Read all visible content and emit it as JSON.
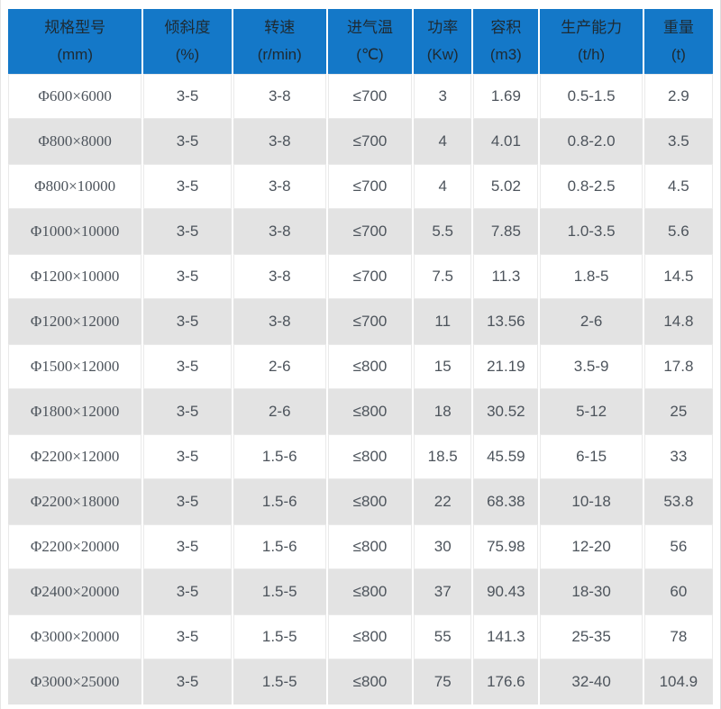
{
  "colors": {
    "header_bg": "#1478c8",
    "header_text": "#1e2a32",
    "body_text": "#4d545c",
    "stripe_row_bg": "#e3e3e3",
    "white_row_bg": "#ffffff",
    "cell_border": "#eaeaea"
  },
  "chart_data": {
    "type": "table",
    "title": "",
    "legend_position": "none",
    "grid": "striped-rows",
    "columns": [
      {
        "label": "规格型号",
        "unit": "(mm)"
      },
      {
        "label": "倾斜度",
        "unit": "(%)"
      },
      {
        "label": "转速",
        "unit": "(r/min)"
      },
      {
        "label": "进气温",
        "unit": "(℃)"
      },
      {
        "label": "功率",
        "unit": "(Kw)"
      },
      {
        "label": "容积",
        "unit": "(m3)"
      },
      {
        "label": "生产能力",
        "unit": "(t/h)"
      },
      {
        "label": "重量",
        "unit": "(t)"
      }
    ],
    "rows": [
      [
        "Φ600×6000",
        "3-5",
        "3-8",
        "≤700",
        "3",
        "1.69",
        "0.5-1.5",
        "2.9"
      ],
      [
        "Φ800×8000",
        "3-5",
        "3-8",
        "≤700",
        "4",
        "4.01",
        "0.8-2.0",
        "3.5"
      ],
      [
        "Φ800×10000",
        "3-5",
        "3-8",
        "≤700",
        "4",
        "5.02",
        "0.8-2.5",
        "4.5"
      ],
      [
        "Φ1000×10000",
        "3-5",
        "3-8",
        "≤700",
        "5.5",
        "7.85",
        "1.0-3.5",
        "5.6"
      ],
      [
        "Φ1200×10000",
        "3-5",
        "3-8",
        "≤700",
        "7.5",
        "11.3",
        "1.8-5",
        "14.5"
      ],
      [
        "Φ1200×12000",
        "3-5",
        "3-8",
        "≤700",
        "11",
        "13.56",
        "2-6",
        "14.8"
      ],
      [
        "Φ1500×12000",
        "3-5",
        "2-6",
        "≤800",
        "15",
        "21.19",
        "3.5-9",
        "17.8"
      ],
      [
        "Φ1800×12000",
        "3-5",
        "2-6",
        "≤800",
        "18",
        "30.52",
        "5-12",
        "25"
      ],
      [
        "Φ2200×12000",
        "3-5",
        "1.5-6",
        "≤800",
        "18.5",
        "45.59",
        "6-15",
        "33"
      ],
      [
        "Φ2200×18000",
        "3-5",
        "1.5-6",
        "≤800",
        "22",
        "68.38",
        "10-18",
        "53.8"
      ],
      [
        "Φ2200×20000",
        "3-5",
        "1.5-6",
        "≤800",
        "30",
        "75.98",
        "12-20",
        "56"
      ],
      [
        "Φ2400×20000",
        "3-5",
        "1.5-5",
        "≤800",
        "37",
        "90.43",
        "18-30",
        "60"
      ],
      [
        "Φ3000×20000",
        "3-5",
        "1.5-5",
        "≤800",
        "55",
        "141.3",
        "25-35",
        "78"
      ],
      [
        "Φ3000×25000",
        "3-5",
        "1.5-5",
        "≤800",
        "75",
        "176.6",
        "32-40",
        "104.9"
      ]
    ]
  }
}
